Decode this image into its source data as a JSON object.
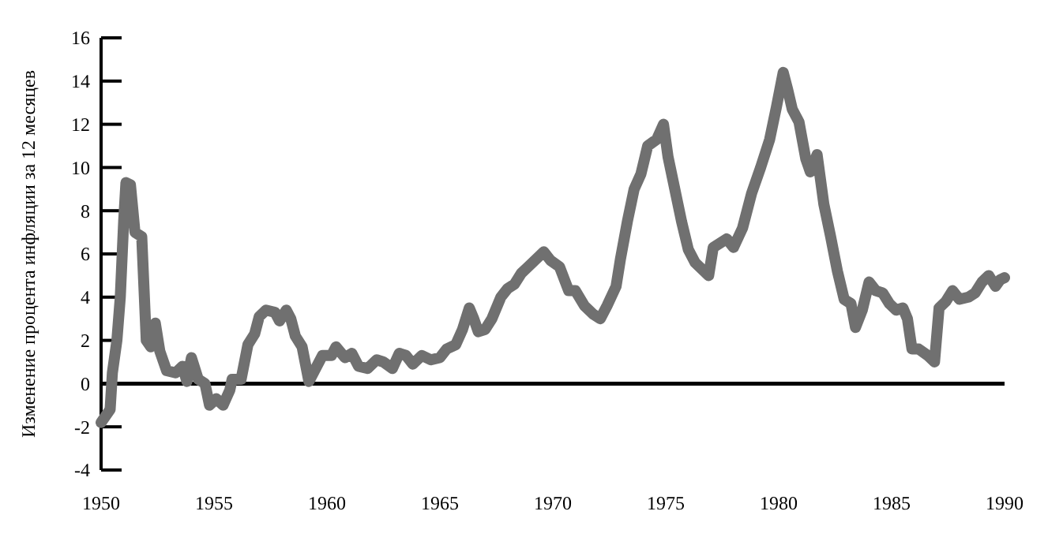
{
  "chart_data": {
    "type": "line",
    "ylabel": "Изменение процента инфляции за 12 месяцев",
    "xlim": [
      1950,
      1990
    ],
    "xticks": [
      1950,
      1955,
      1960,
      1965,
      1970,
      1975,
      1980,
      1985,
      1990
    ],
    "ylim": [
      -4,
      16
    ],
    "yticks": [
      -4,
      -2,
      0,
      2,
      4,
      6,
      8,
      10,
      12,
      14,
      16
    ],
    "grid": false,
    "marker": "none",
    "line_style": "solid",
    "ref_lines": [
      {
        "axis": "y",
        "value": 0,
        "color": "#000000"
      }
    ],
    "series": [
      {
        "color": "#707070",
        "x": [
          1950.0,
          1950.4,
          1950.5,
          1950.7,
          1950.85,
          1951.0,
          1951.1,
          1951.3,
          1951.5,
          1951.8,
          1952.0,
          1952.2,
          1952.4,
          1952.6,
          1952.9,
          1953.3,
          1953.6,
          1953.8,
          1954.0,
          1954.3,
          1954.6,
          1954.8,
          1955.1,
          1955.4,
          1955.7,
          1955.8,
          1956.2,
          1956.5,
          1956.8,
          1957.0,
          1957.3,
          1957.7,
          1957.9,
          1958.2,
          1958.4,
          1958.6,
          1958.9,
          1959.2,
          1959.5,
          1959.8,
          1960.2,
          1960.4,
          1960.8,
          1961.1,
          1961.4,
          1961.8,
          1962.2,
          1962.5,
          1962.9,
          1963.2,
          1963.5,
          1963.8,
          1964.2,
          1964.6,
          1965.0,
          1965.3,
          1965.7,
          1966.0,
          1966.3,
          1966.5,
          1966.7,
          1967.0,
          1967.3,
          1967.7,
          1968.0,
          1968.3,
          1968.6,
          1968.9,
          1969.3,
          1969.6,
          1969.9,
          1970.3,
          1970.7,
          1971.0,
          1971.4,
          1971.8,
          1972.1,
          1972.4,
          1972.8,
          1973.0,
          1973.3,
          1973.6,
          1973.9,
          1974.2,
          1974.6,
          1974.9,
          1975.1,
          1975.4,
          1975.7,
          1976.0,
          1976.3,
          1976.6,
          1976.9,
          1977.1,
          1977.4,
          1977.7,
          1978.0,
          1978.4,
          1978.8,
          1979.2,
          1979.6,
          1979.9,
          1980.2,
          1980.4,
          1980.6,
          1980.9,
          1981.2,
          1981.4,
          1981.7,
          1982.0,
          1982.3,
          1982.6,
          1982.9,
          1983.2,
          1983.4,
          1983.7,
          1984.0,
          1984.3,
          1984.6,
          1984.9,
          1985.2,
          1985.5,
          1985.7,
          1985.9,
          1986.2,
          1986.6,
          1986.9,
          1987.1,
          1987.4,
          1987.7,
          1988.0,
          1988.4,
          1988.7,
          1989.0,
          1989.3,
          1989.6,
          1989.8,
          1990.0
        ],
        "values": [
          -1.8,
          -1.2,
          0.5,
          2.0,
          4.0,
          7.5,
          9.3,
          9.2,
          7.0,
          6.8,
          2.0,
          1.7,
          2.8,
          1.5,
          0.6,
          0.5,
          0.8,
          0.1,
          1.2,
          0.2,
          0.0,
          -1.0,
          -0.7,
          -1.0,
          -0.3,
          0.2,
          0.2,
          1.8,
          2.3,
          3.1,
          3.4,
          3.3,
          2.9,
          3.4,
          3.0,
          2.2,
          1.7,
          0.1,
          0.7,
          1.3,
          1.3,
          1.7,
          1.2,
          1.4,
          0.8,
          0.7,
          1.1,
          1.0,
          0.7,
          1.4,
          1.3,
          0.9,
          1.3,
          1.1,
          1.2,
          1.6,
          1.8,
          2.5,
          3.5,
          3.0,
          2.4,
          2.5,
          3.0,
          4.0,
          4.4,
          4.6,
          5.1,
          5.4,
          5.8,
          6.1,
          5.7,
          5.4,
          4.3,
          4.3,
          3.6,
          3.2,
          3.0,
          3.6,
          4.5,
          5.8,
          7.5,
          9.0,
          9.7,
          11.0,
          11.3,
          12.0,
          10.5,
          9.0,
          7.5,
          6.2,
          5.6,
          5.3,
          5.0,
          6.3,
          6.5,
          6.7,
          6.3,
          7.2,
          8.8,
          10.0,
          11.3,
          12.8,
          14.4,
          13.6,
          12.7,
          12.1,
          10.4,
          9.8,
          10.6,
          8.3,
          6.8,
          5.2,
          3.9,
          3.7,
          2.6,
          3.4,
          4.7,
          4.3,
          4.2,
          3.7,
          3.4,
          3.5,
          3.0,
          1.6,
          1.6,
          1.3,
          1.0,
          3.5,
          3.8,
          4.3,
          3.9,
          4.0,
          4.2,
          4.7,
          5.0,
          4.5,
          4.8,
          4.9
        ]
      }
    ]
  }
}
